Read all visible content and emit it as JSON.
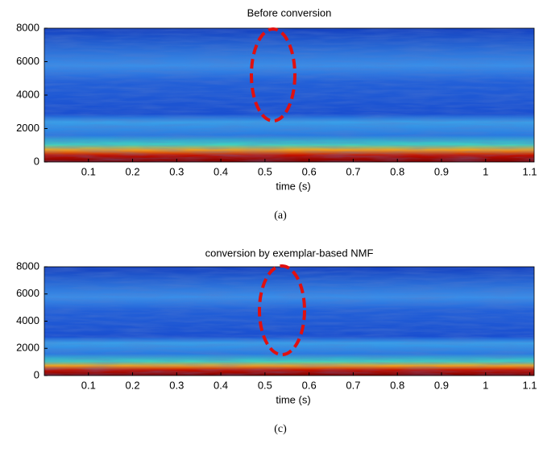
{
  "chart_data": [
    {
      "type": "spectrogram",
      "title": "Before conversion",
      "x_label": "time (s)",
      "caption": "(a)",
      "xlim": [
        0,
        1.11
      ],
      "ylim": [
        0,
        8000
      ],
      "xticks": [
        0.1,
        0.2,
        0.3,
        0.4,
        0.5,
        0.6,
        0.7,
        0.8,
        0.9,
        1,
        1.1
      ],
      "yticks": [
        0,
        2000,
        4000,
        6000,
        8000
      ]
    },
    {
      "type": "spectrogram",
      "title": "conversion by exemplar-based NMF",
      "x_label": "time (s)",
      "caption": "(c)",
      "xlim": [
        0,
        1.11
      ],
      "ylim": [
        0,
        8000
      ],
      "xticks": [
        0.1,
        0.2,
        0.3,
        0.4,
        0.5,
        0.6,
        0.7,
        0.8,
        0.9,
        1,
        1.1
      ],
      "yticks": [
        0,
        2000,
        4000,
        6000,
        8000
      ]
    }
  ]
}
